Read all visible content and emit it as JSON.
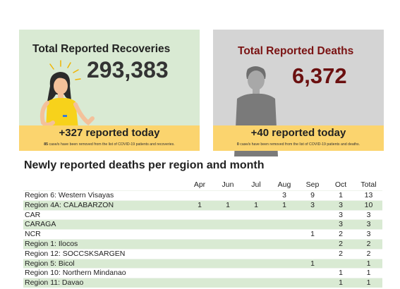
{
  "recoveries": {
    "title": "Total Reported Recoveries",
    "total": "293,383",
    "today": "+327 reported today",
    "note_count": "85",
    "note_text": " case/s have been removed from the list of COVID-19 patients and recoveries."
  },
  "deaths": {
    "title": "Total Reported Deaths",
    "total": "6,372",
    "today": "+40 reported today",
    "note_count": "0",
    "note_text": " case/s have been removed from the list of COVID-19 patients and deaths."
  },
  "table": {
    "title": "Newly reported deaths per region and month",
    "columns": [
      "",
      "Apr",
      "Jun",
      "Jul",
      "Aug",
      "Sep",
      "Oct",
      "Total"
    ],
    "rows": [
      [
        "Region 6: Western Visayas",
        "",
        "",
        "",
        "3",
        "9",
        "1",
        "13"
      ],
      [
        "Region 4A: CALABARZON",
        "1",
        "1",
        "1",
        "1",
        "3",
        "3",
        "10"
      ],
      [
        "CAR",
        "",
        "",
        "",
        "",
        "",
        "3",
        "3"
      ],
      [
        "CARAGA",
        "",
        "",
        "",
        "",
        "",
        "3",
        "3"
      ],
      [
        "NCR",
        "",
        "",
        "",
        "",
        "1",
        "2",
        "3"
      ],
      [
        "Region 1: Ilocos",
        "",
        "",
        "",
        "",
        "",
        "2",
        "2"
      ],
      [
        "Region 12: SOCCSKSARGEN",
        "",
        "",
        "",
        "",
        "",
        "2",
        "2"
      ],
      [
        "Region 5: Bicol",
        "",
        "",
        "",
        "",
        "1",
        "",
        "1"
      ],
      [
        "Region 10: Northern Mindanao",
        "",
        "",
        "",
        "",
        "",
        "1",
        "1"
      ],
      [
        "Region 11: Davao",
        "",
        "",
        "",
        "",
        "",
        "1",
        "1"
      ]
    ]
  },
  "colors": {
    "recoveries_bg": "#d9ead3",
    "deaths_bg": "#d4d4d4",
    "footer_bg": "#fbd46e",
    "deaths_accent": "#7a1212"
  }
}
